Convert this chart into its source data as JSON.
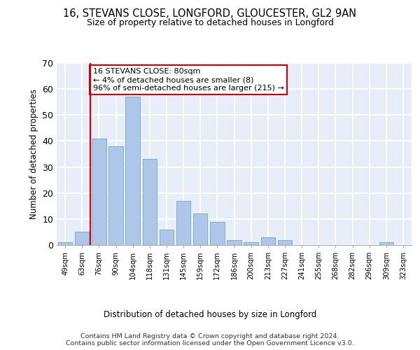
{
  "title1": "16, STEVANS CLOSE, LONGFORD, GLOUCESTER, GL2 9AN",
  "title2": "Size of property relative to detached houses in Longford",
  "xlabel": "Distribution of detached houses by size in Longford",
  "ylabel": "Number of detached properties",
  "categories": [
    "49sqm",
    "63sqm",
    "76sqm",
    "90sqm",
    "104sqm",
    "118sqm",
    "131sqm",
    "145sqm",
    "159sqm",
    "172sqm",
    "186sqm",
    "200sqm",
    "213sqm",
    "227sqm",
    "241sqm",
    "255sqm",
    "268sqm",
    "282sqm",
    "296sqm",
    "309sqm",
    "323sqm"
  ],
  "values": [
    1,
    5,
    41,
    38,
    57,
    33,
    6,
    17,
    12,
    9,
    2,
    1,
    3,
    2,
    0,
    0,
    0,
    0,
    0,
    1,
    0
  ],
  "bar_color": "#aec6e8",
  "bar_edge_color": "#7aaed6",
  "background_color": "#e8eef7",
  "grid_color": "#ffffff",
  "vline_x_idx": 2.0,
  "vline_color": "#cc0000",
  "annotation_text": "16 STEVANS CLOSE: 80sqm\n← 4% of detached houses are smaller (8)\n96% of semi-detached houses are larger (215) →",
  "annotation_box_color": "#ffffff",
  "annotation_box_edge_color": "#cc0000",
  "ylim": [
    0,
    70
  ],
  "yticks": [
    0,
    10,
    20,
    30,
    40,
    50,
    60,
    70
  ],
  "footer": "Contains HM Land Registry data © Crown copyright and database right 2024.\nContains public sector information licensed under the Open Government Licence v3.0."
}
